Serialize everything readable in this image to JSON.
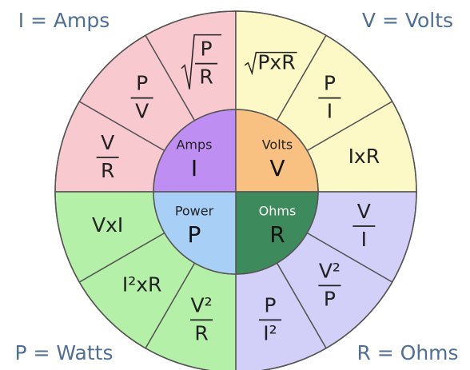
{
  "corners": [
    "I = Amps",
    "V = Volts",
    "P = Watts",
    "R = Ohms"
  ],
  "quadrants": [
    {
      "name": "Amps",
      "symbol": "I",
      "formulas": [
        {
          "num": "V",
          "den": "R"
        },
        {
          "num": "P",
          "den": "V"
        },
        {
          "num": "P",
          "den": "R",
          "radical": true
        }
      ]
    },
    {
      "name": "Volts",
      "symbol": "V",
      "formulas": [
        {
          "text": "PxR",
          "radical": true
        },
        {
          "num": "P",
          "den": "I"
        },
        {
          "text": "IxR"
        }
      ]
    },
    {
      "name": "Ohms",
      "symbol": "R",
      "formulas": [
        {
          "num": "V",
          "den": "I"
        },
        {
          "num": "V²",
          "den": "P"
        },
        {
          "num": "P",
          "den": "I²"
        }
      ]
    },
    {
      "name": "Power",
      "symbol": "P",
      "formulas": [
        {
          "num": "V²",
          "den": "R"
        },
        {
          "text": "I²xR"
        },
        {
          "text": "VxI"
        }
      ]
    }
  ]
}
